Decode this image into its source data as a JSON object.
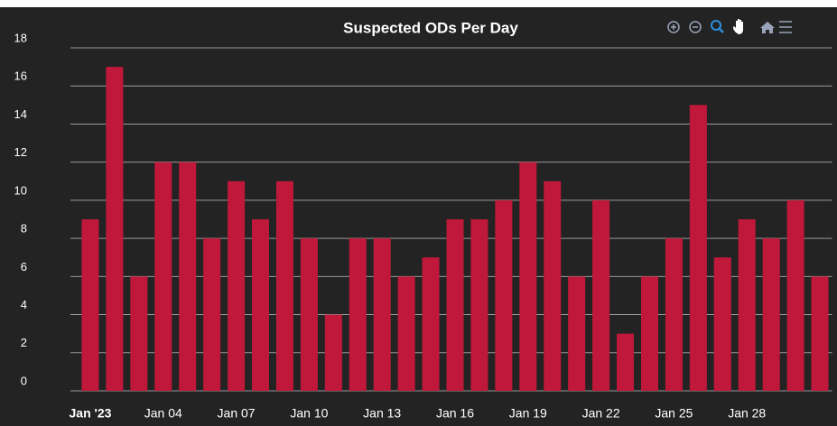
{
  "chart_data": {
    "type": "bar",
    "title": "Suspected ODs Per Day",
    "categories": [
      "Jan '23",
      null,
      null,
      "Jan 04",
      null,
      null,
      "Jan 07",
      null,
      null,
      "Jan 10",
      null,
      null,
      "Jan 13",
      null,
      null,
      "Jan 16",
      null,
      null,
      "Jan 19",
      null,
      null,
      "Jan 22",
      null,
      null,
      "Jan 25",
      null,
      null,
      "Jan 28",
      null,
      null,
      null
    ],
    "values": [
      9,
      17,
      6,
      12,
      12,
      8,
      11,
      9,
      11,
      8,
      4,
      8,
      8,
      6,
      7,
      9,
      9,
      10,
      12,
      11,
      6,
      10,
      3,
      6,
      8,
      15,
      7,
      9,
      8,
      10,
      6
    ],
    "color": "#c0183a",
    "ylim": [
      0,
      18
    ],
    "yticks": [
      0,
      2,
      4,
      6,
      8,
      10,
      12,
      14,
      16,
      18
    ],
    "grid": true
  }
}
